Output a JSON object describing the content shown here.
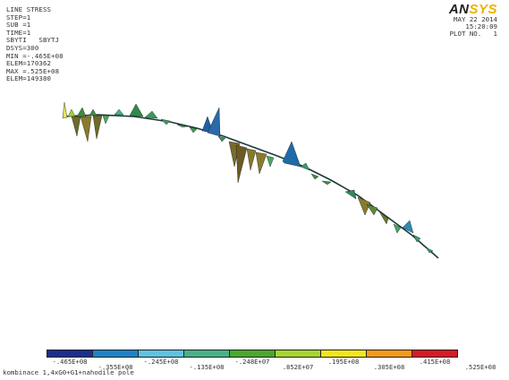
{
  "info": {
    "lines": [
      "LINE STRESS",
      "STEP=1",
      "SUB =1",
      "TIME=1",
      "SBYTI   SBYTJ",
      "DSYS=300",
      "MIN =-.465E+08",
      "ELEM=170362",
      "MAX =.525E+08",
      "ELEM=149380"
    ]
  },
  "logo": {
    "part1": "AN",
    "part2": "SYS",
    "accent": "#f0b000"
  },
  "stamp": {
    "date": "MAY 22 2014",
    "time": "15:20:09",
    "plot": "PLOT NO.   1"
  },
  "legend": {
    "colors": [
      "#1c2e8c",
      "#1f82c8",
      "#5ec2e0",
      "#47b28a",
      "#4aa82e",
      "#a6d531",
      "#f2e51d",
      "#f29a1c",
      "#d71a26"
    ],
    "labels_bottom": [
      "-.465E+08",
      "-.355E+08",
      "-.245E+08",
      "-.135E+08",
      "-.248E+07",
      ".852E+07",
      ".195E+08",
      ".305E+08",
      ".415E+08",
      ".525E+08"
    ]
  },
  "caption": "kombinace 1,4xG0+G1+nahodile pole"
}
